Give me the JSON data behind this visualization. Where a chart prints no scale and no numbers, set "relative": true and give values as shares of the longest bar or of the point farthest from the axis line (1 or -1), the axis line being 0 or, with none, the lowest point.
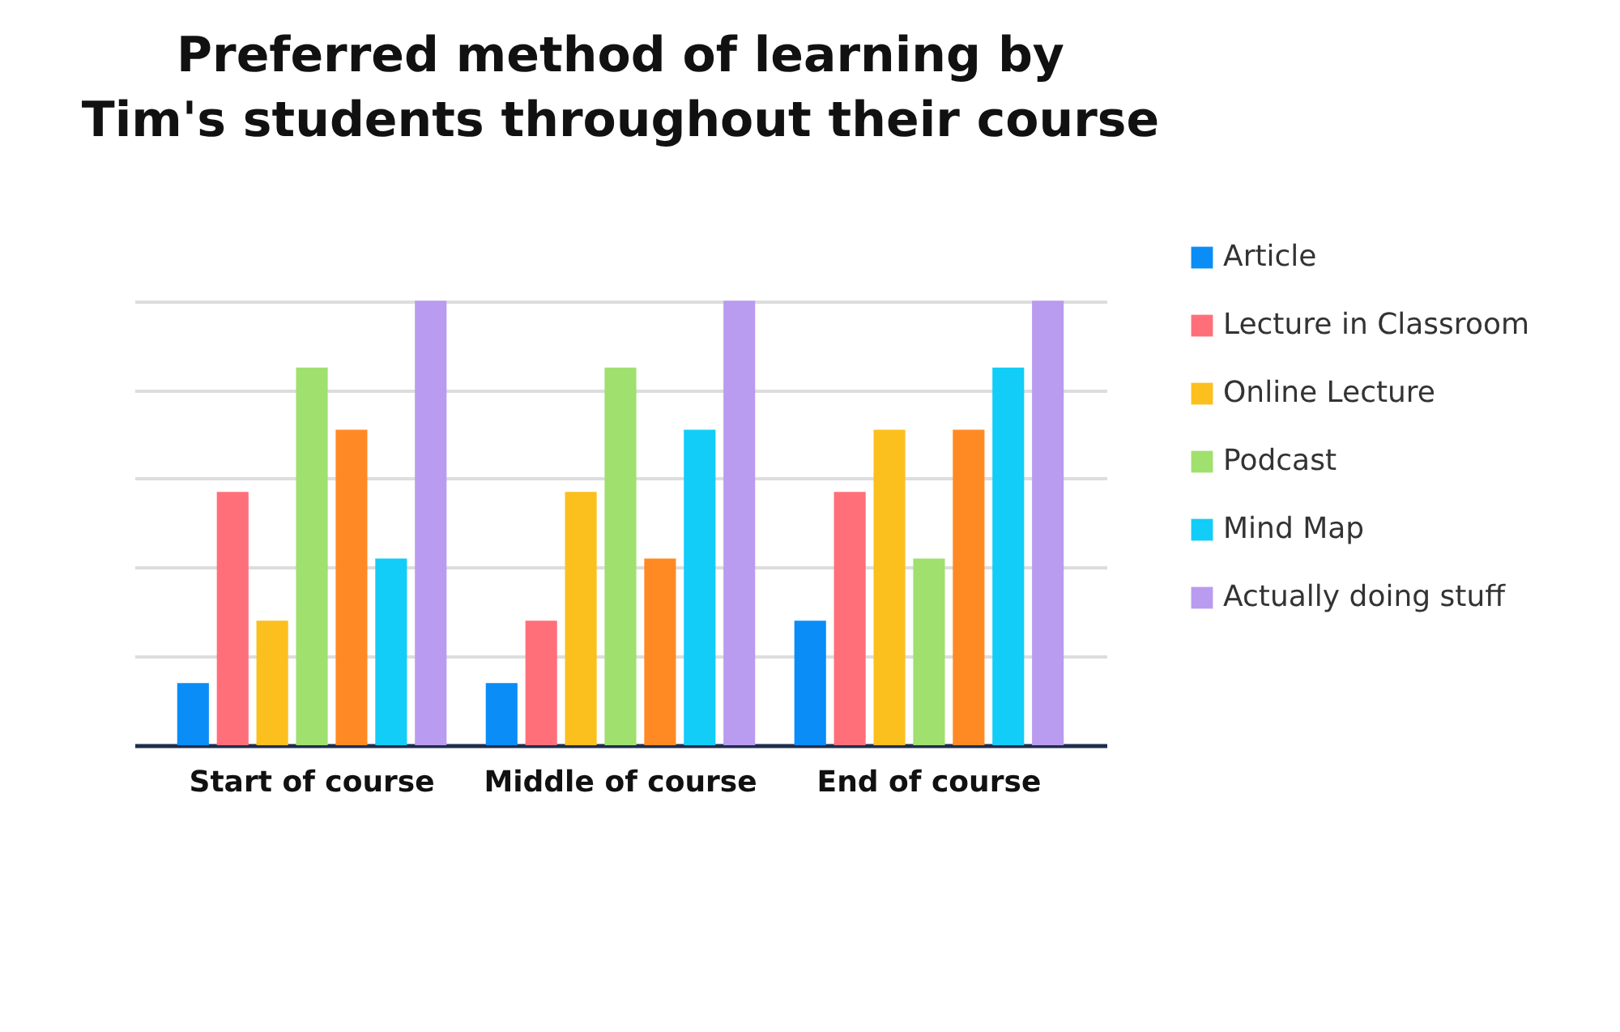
{
  "chart_data": {
    "type": "bar",
    "title": "Preferred method of learning by\nTim's students throughout their course",
    "categories": [
      "Start of course",
      "Middle of course",
      "End of course"
    ],
    "relative": true,
    "grid": "y",
    "legend": "right",
    "series": [
      {
        "name": "Article",
        "color": "#0a8df6",
        "values": [
          0.14,
          0.14,
          0.28
        ]
      },
      {
        "name": "Lecture in Classroom",
        "color": "#ff6f7a",
        "values": [
          0.57,
          0.28,
          0.57
        ]
      },
      {
        "name": "Online Lecture",
        "color": "#fbbf1e",
        "values": [
          0.28,
          0.57,
          0.71
        ]
      },
      {
        "name": "Podcast",
        "color": "#9fe06e",
        "values": [
          0.85,
          0.85,
          0.42
        ]
      },
      {
        "color": "#ff8a24",
        "values": [
          0.71,
          0.42,
          0.71
        ]
      },
      {
        "name": "Mind Map",
        "color": "#12cdf7",
        "values": [
          0.42,
          0.71,
          0.85
        ]
      },
      {
        "name": "Actually doing stuff",
        "color": "#b99bf0",
        "values": [
          1,
          1,
          1
        ]
      }
    ]
  }
}
